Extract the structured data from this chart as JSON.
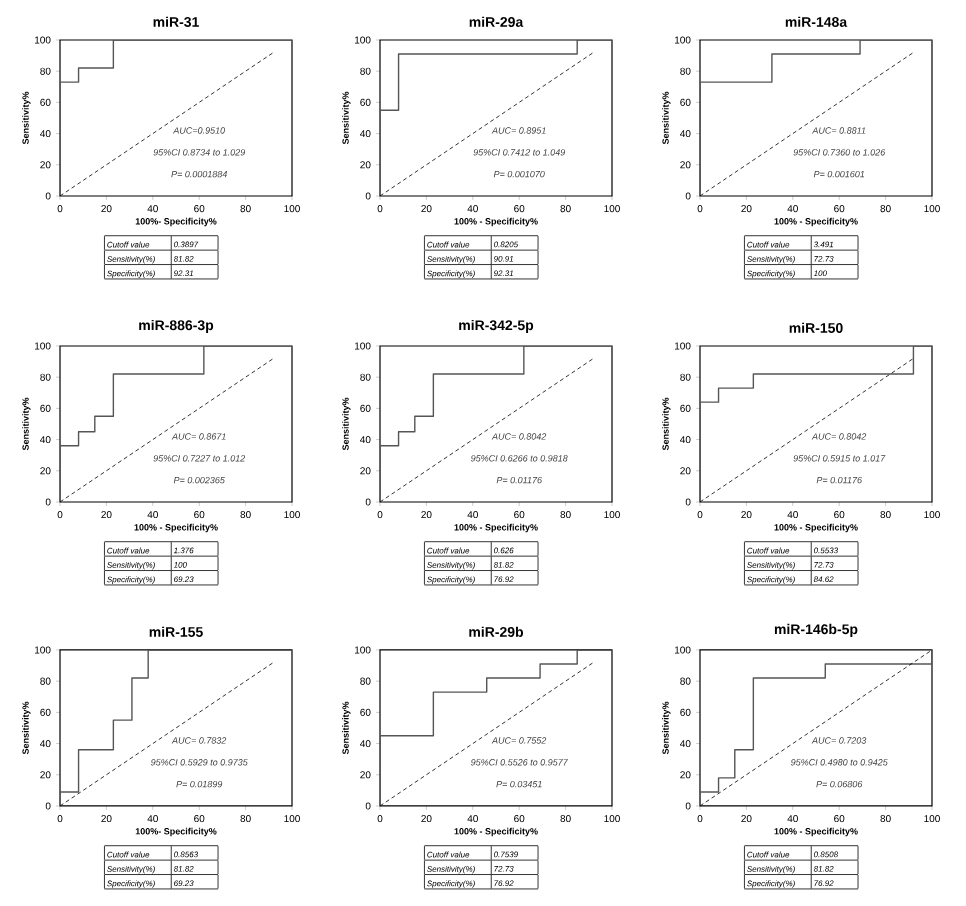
{
  "chart_data": [
    {
      "type": "line",
      "title": "miR-31",
      "xlabel": "100%- Specificity%",
      "ylabel": "Sensitivity%",
      "xlim": [
        0,
        100
      ],
      "ylim": [
        0,
        100
      ],
      "xticks": [
        0,
        20,
        40,
        60,
        80,
        100
      ],
      "yticks": [
        0,
        20,
        40,
        60,
        80,
        100
      ],
      "series": [
        {
          "color": "#555555",
          "x": [
            0,
            0,
            8,
            8,
            23,
            23,
            100
          ],
          "values": [
            0,
            73,
            73,
            82,
            82,
            100,
            100
          ]
        },
        {
          "color": "#000000",
          "line_style": "dashed",
          "x": [
            0,
            92
          ],
          "values": [
            0,
            92
          ]
        }
      ],
      "annotations": [
        "AUC=0.9510",
        "95%CI 0.8734 to 1.029",
        "P= 0.0001884",
        "Cutoff value",
        "0.3897",
        "Sensitivity(%)",
        "81.82",
        "Specificity(%)",
        "92.31"
      ]
    },
    {
      "type": "line",
      "title": "miR-29a",
      "xlabel": "100% - Specificity%",
      "ylabel": "Sensitivity%",
      "xlim": [
        0,
        100
      ],
      "ylim": [
        0,
        100
      ],
      "xticks": [
        0,
        20,
        40,
        60,
        80,
        100
      ],
      "yticks": [
        0,
        20,
        40,
        60,
        80,
        100
      ],
      "series": [
        {
          "color": "#555555",
          "x": [
            0,
            0,
            8,
            8,
            85,
            85,
            100
          ],
          "values": [
            0,
            55,
            55,
            91,
            91,
            100,
            100
          ]
        },
        {
          "color": "#000000",
          "line_style": "dashed",
          "x": [
            0,
            92
          ],
          "values": [
            0,
            92
          ]
        }
      ],
      "annotations": [
        "AUC= 0.8951",
        "95%CI 0.7412 to 1.049",
        "P= 0.001070",
        "Cutoff value",
        "0.8205",
        "Sensitivity(%)",
        "90.91",
        "Specificity(%)",
        "92.31"
      ]
    },
    {
      "type": "line",
      "title": "miR-148a",
      "xlabel": "100% - Specificity%",
      "ylabel": "Sensitivity%",
      "xlim": [
        0,
        100
      ],
      "ylim": [
        0,
        100
      ],
      "xticks": [
        0,
        20,
        40,
        60,
        80,
        100
      ],
      "yticks": [
        0,
        20,
        40,
        60,
        80,
        100
      ],
      "series": [
        {
          "color": "#555555",
          "x": [
            0,
            0,
            31,
            31,
            69,
            69,
            100
          ],
          "values": [
            0,
            73,
            73,
            91,
            91,
            100,
            100
          ]
        },
        {
          "color": "#000000",
          "line_style": "dashed",
          "x": [
            0,
            92
          ],
          "values": [
            0,
            92
          ]
        }
      ],
      "annotations": [
        "AUC= 0.8811",
        "95%CI 0.7360 to 1.026",
        "P= 0.001601",
        "Cutoff value",
        "3.491",
        "Sensitivity(%)",
        "72.73",
        "Specificity(%)",
        "100"
      ]
    },
    {
      "type": "line",
      "title": "miR-886-3p",
      "xlabel": "100% - Specificity%",
      "ylabel": "Sensitivity%",
      "xlim": [
        0,
        100
      ],
      "ylim": [
        0,
        100
      ],
      "xticks": [
        0,
        20,
        40,
        60,
        80,
        100
      ],
      "yticks": [
        0,
        20,
        40,
        60,
        80,
        100
      ],
      "series": [
        {
          "color": "#555555",
          "x": [
            0,
            0,
            8,
            8,
            15,
            15,
            23,
            23,
            62,
            62,
            100
          ],
          "values": [
            0,
            36,
            36,
            45,
            45,
            55,
            55,
            82,
            82,
            100,
            100
          ]
        },
        {
          "color": "#000000",
          "line_style": "dashed",
          "x": [
            0,
            92
          ],
          "values": [
            0,
            92
          ]
        }
      ],
      "annotations": [
        "AUC= 0.8671",
        "95%CI 0.7227 to 1.012",
        "P= 0.002365",
        "Cutoff value",
        "1.376",
        "Sensitivity(%)",
        "100",
        "Specificity(%)",
        "69.23"
      ]
    },
    {
      "type": "line",
      "title": "miR-342-5p",
      "xlabel": "100% - Specificity%",
      "ylabel": "Sensitivity%",
      "xlim": [
        0,
        100
      ],
      "ylim": [
        0,
        100
      ],
      "xticks": [
        0,
        20,
        40,
        60,
        80,
        100
      ],
      "yticks": [
        0,
        20,
        40,
        60,
        80,
        100
      ],
      "series": [
        {
          "color": "#555555",
          "x": [
            0,
            0,
            8,
            8,
            15,
            15,
            23,
            23,
            62,
            62,
            100
          ],
          "values": [
            0,
            36,
            36,
            45,
            45,
            55,
            55,
            82,
            82,
            100,
            100
          ]
        },
        {
          "color": "#000000",
          "line_style": "dashed",
          "x": [
            0,
            92
          ],
          "values": [
            0,
            92
          ]
        }
      ],
      "annotations": [
        "AUC= 0.8042",
        "95%CI 0.6266 to 0.9818",
        "P= 0.01176",
        "Cutoff value",
        "0.626",
        "Sensitivity(%)",
        "81.82",
        "Specificity(%)",
        "76.92"
      ]
    },
    {
      "type": "line",
      "title": "miR-150",
      "xlabel": "100% - Specificity%",
      "ylabel": "Sensitivity%",
      "xlim": [
        0,
        100
      ],
      "ylim": [
        0,
        100
      ],
      "xticks": [
        0,
        20,
        40,
        60,
        80,
        100
      ],
      "yticks": [
        0,
        20,
        40,
        60,
        80,
        100
      ],
      "series": [
        {
          "color": "#555555",
          "x": [
            0,
            0,
            8,
            8,
            23,
            23,
            92,
            92,
            100
          ],
          "values": [
            0,
            64,
            64,
            73,
            73,
            82,
            82,
            100,
            100
          ]
        },
        {
          "color": "#000000",
          "line_style": "dashed",
          "x": [
            0,
            92
          ],
          "values": [
            0,
            92
          ]
        }
      ],
      "annotations": [
        "AUC= 0.8042",
        "95%CI 0.5915 to 1.017",
        "P= 0.01176",
        "Cutoff value",
        "0.5533",
        "Sensitivity(%)",
        "72.73",
        "Specificity(%)",
        "84.62"
      ]
    },
    {
      "type": "line",
      "title": "miR-155",
      "xlabel": "100%- Specificity%",
      "ylabel": "Sensitivity%",
      "xlim": [
        0,
        100
      ],
      "ylim": [
        0,
        100
      ],
      "xticks": [
        0,
        20,
        40,
        60,
        80,
        100
      ],
      "yticks": [
        0,
        20,
        40,
        60,
        80,
        100
      ],
      "series": [
        {
          "color": "#555555",
          "x": [
            0,
            0,
            8,
            8,
            23,
            23,
            31,
            31,
            38,
            38,
            100
          ],
          "values": [
            0,
            9,
            9,
            36,
            36,
            55,
            55,
            82,
            82,
            100,
            100
          ]
        },
        {
          "color": "#000000",
          "line_style": "dashed",
          "x": [
            0,
            92
          ],
          "values": [
            0,
            92
          ]
        }
      ],
      "annotations": [
        "AUC= 0.7832",
        "95%CI 0.5929 to 0.9735",
        "P= 0.01899",
        "Cutoff value",
        "0.8563",
        "Sensitivity(%)",
        "81.82",
        "Specificity(%)",
        "69.23"
      ]
    },
    {
      "type": "line",
      "title": "miR-29b",
      "xlabel": "100% - Specificity%",
      "ylabel": "Sensitivity%",
      "xlim": [
        0,
        100
      ],
      "ylim": [
        0,
        100
      ],
      "xticks": [
        0,
        20,
        40,
        60,
        80,
        100
      ],
      "yticks": [
        0,
        20,
        40,
        60,
        80,
        100
      ],
      "series": [
        {
          "color": "#555555",
          "x": [
            0,
            0,
            23,
            23,
            46,
            46,
            69,
            69,
            85,
            85,
            100
          ],
          "values": [
            0,
            45,
            45,
            73,
            73,
            82,
            82,
            91,
            91,
            100,
            100
          ]
        },
        {
          "color": "#000000",
          "line_style": "dashed",
          "x": [
            0,
            92
          ],
          "values": [
            0,
            92
          ]
        }
      ],
      "annotations": [
        "AUC= 0.7552",
        "95%CI 0.5526 to 0.9577",
        "P= 0.03451",
        "Cutoff value",
        "0.7539",
        "Sensitivity(%)",
        "72.73",
        "Specificity(%)",
        "76.92"
      ]
    },
    {
      "type": "line",
      "title": "miR-146b-5p",
      "xlabel": "100% - Specificity%",
      "ylabel": "Sensitivity%",
      "xlim": [
        0,
        100
      ],
      "ylim": [
        0,
        100
      ],
      "xticks": [
        0,
        20,
        40,
        60,
        80,
        100
      ],
      "yticks": [
        0,
        20,
        40,
        60,
        80,
        100
      ],
      "series": [
        {
          "color": "#555555",
          "x": [
            0,
            0,
            8,
            8,
            15,
            15,
            23,
            23,
            54,
            54,
            100,
            100
          ],
          "values": [
            0,
            9,
            9,
            18,
            18,
            36,
            36,
            82,
            82,
            91,
            91,
            100
          ]
        },
        {
          "color": "#000000",
          "line_style": "dashed",
          "x": [
            0,
            100
          ],
          "values": [
            0,
            100
          ]
        }
      ],
      "annotations": [
        "AUC= 0.7203",
        "95%CI 0.4980 to 0.9425",
        "P= 0.06806",
        "Cutoff value",
        "0.8508",
        "Sensitivity(%)",
        "81.82",
        "Specificity(%)",
        "76.92"
      ]
    }
  ]
}
